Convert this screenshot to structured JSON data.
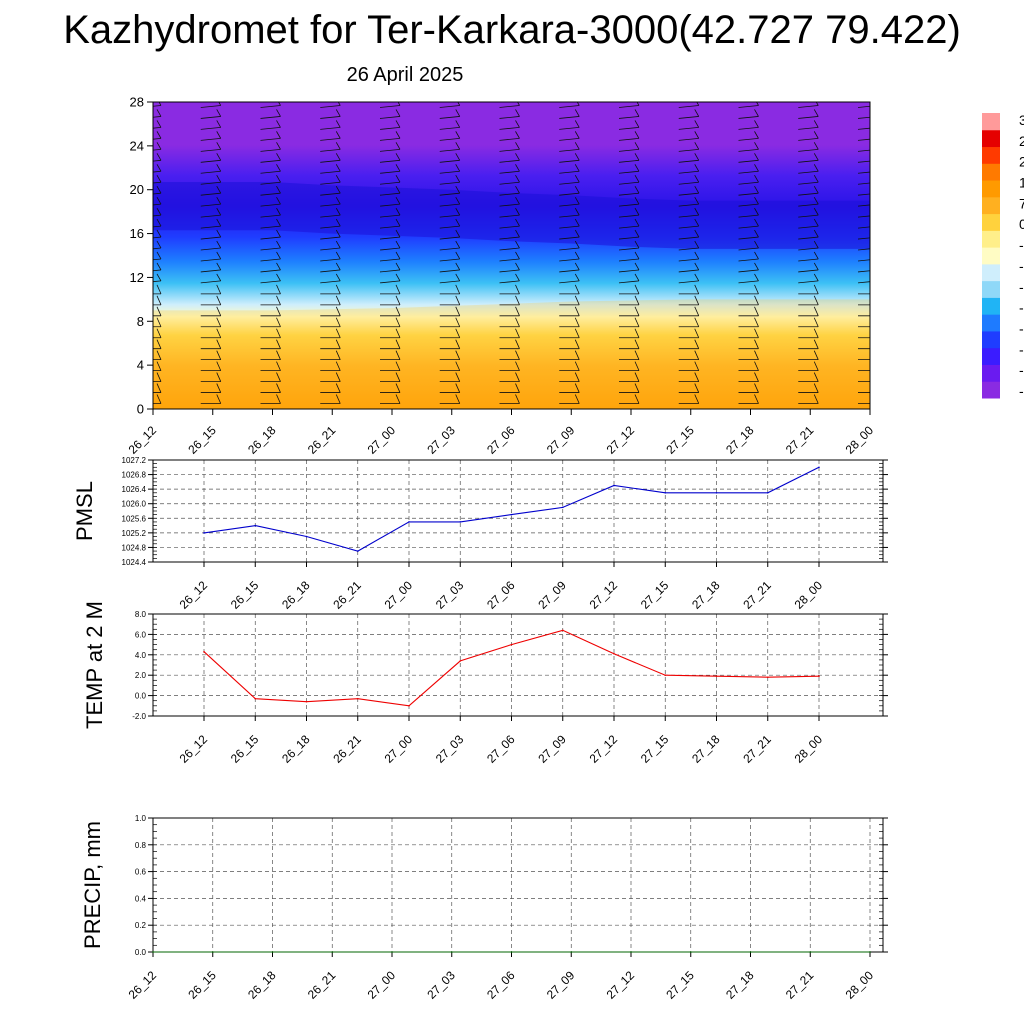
{
  "header": {
    "title": "Kazhydromet for Ter-Karkara-3000(42.727 79.422)",
    "subtitle": "26 April 2025"
  },
  "colors": {
    "pmsl_line": "#0000cc",
    "temp_line": "#ee0000",
    "precip_line": "#006600",
    "colorbar": [
      "#8a2be2",
      "#6a1bf0",
      "#3b1cff",
      "#1f3dff",
      "#1e7bff",
      "#20b4f5",
      "#8fd8f8",
      "#cfeefc",
      "#fffcc4",
      "#ffef8a",
      "#ffd23d",
      "#ffb020",
      "#ff9a00",
      "#ff7a00",
      "#ff3a00",
      "#e50000",
      "#ff9a9a"
    ]
  },
  "time_labels": [
    "26_12",
    "26_15",
    "26_18",
    "26_21",
    "27_00",
    "27_03",
    "27_06",
    "27_09",
    "27_12",
    "27_15",
    "27_18",
    "27_21",
    "28_00"
  ],
  "colorbar_labels": [
    "3",
    "2",
    "2",
    "1",
    "7",
    "0",
    "-",
    "-",
    "-",
    "-",
    "-",
    "-",
    "-",
    "-"
  ],
  "chart_data": [
    {
      "type": "heatmap",
      "title": "",
      "description_of_field": "temperature shading by level with wind barbs",
      "y_ticks": [
        0,
        4,
        8,
        12,
        16,
        20,
        24,
        28
      ],
      "ylim": [
        0,
        28
      ],
      "x": [
        "26_12",
        "26_15",
        "26_18",
        "26_21",
        "27_00",
        "27_03",
        "27_06",
        "27_09",
        "27_12",
        "27_15",
        "27_18",
        "27_21",
        "28_00"
      ],
      "warm_cold_boundary_level": [
        9.0,
        9.0,
        9.0,
        9.1,
        9.2,
        9.4,
        9.6,
        9.8,
        9.9,
        10.0,
        10.0,
        10.0,
        10.0
      ],
      "jet_core_level": [
        18.5,
        18.5,
        18.5,
        18.2,
        18.0,
        17.8,
        17.5,
        17.3,
        17.0,
        16.8,
        16.8,
        16.8,
        16.8
      ]
    },
    {
      "type": "line",
      "ylabel": "PMSL",
      "x": [
        "26_12",
        "26_15",
        "26_18",
        "26_21",
        "27_00",
        "27_03",
        "27_06",
        "27_09",
        "27_12",
        "27_15",
        "27_18",
        "27_21",
        "28_00"
      ],
      "y_ticks": [
        "1024.4",
        "1024.8",
        "1025.2",
        "1025.6",
        "1026.0",
        "1026.4",
        "1026.8",
        "1027.2"
      ],
      "ylim": [
        1024.4,
        1027.2
      ],
      "series": [
        {
          "values": [
            1025.2,
            1025.4,
            1025.1,
            1024.7,
            1025.5,
            1025.5,
            1025.7,
            1025.9,
            1026.5,
            1026.3,
            1026.3,
            1026.3,
            1027.0
          ]
        }
      ],
      "grid": true
    },
    {
      "type": "line",
      "ylabel": "TEMP at 2 M",
      "x": [
        "26_12",
        "26_15",
        "26_18",
        "26_21",
        "27_00",
        "27_03",
        "27_06",
        "27_09",
        "27_12",
        "27_15",
        "27_18",
        "27_21",
        "28_00"
      ],
      "y_ticks": [
        "-2.0",
        "0.0",
        "2.0",
        "4.0",
        "6.0",
        "8.0"
      ],
      "ylim": [
        -2.0,
        8.0
      ],
      "series": [
        {
          "values": [
            4.3,
            -0.3,
            -0.6,
            -0.3,
            -1.0,
            3.4,
            5.0,
            6.4,
            4.1,
            2.0,
            1.9,
            1.8,
            1.9
          ]
        }
      ],
      "grid": true
    },
    {
      "type": "line",
      "ylabel": "PRECIP, mm",
      "x": [
        "26_12",
        "26_15",
        "26_18",
        "26_21",
        "27_00",
        "27_03",
        "27_06",
        "27_09",
        "27_12",
        "27_15",
        "27_18",
        "27_21",
        "28_00"
      ],
      "y_ticks": [
        "0.0",
        "0.2",
        "0.4",
        "0.6",
        "0.8",
        "1.0"
      ],
      "ylim": [
        0.0,
        1.0
      ],
      "series": [
        {
          "values": [
            0,
            0,
            0,
            0,
            0,
            0,
            0,
            0,
            0,
            0,
            0,
            0,
            0
          ]
        }
      ],
      "grid": true
    }
  ]
}
